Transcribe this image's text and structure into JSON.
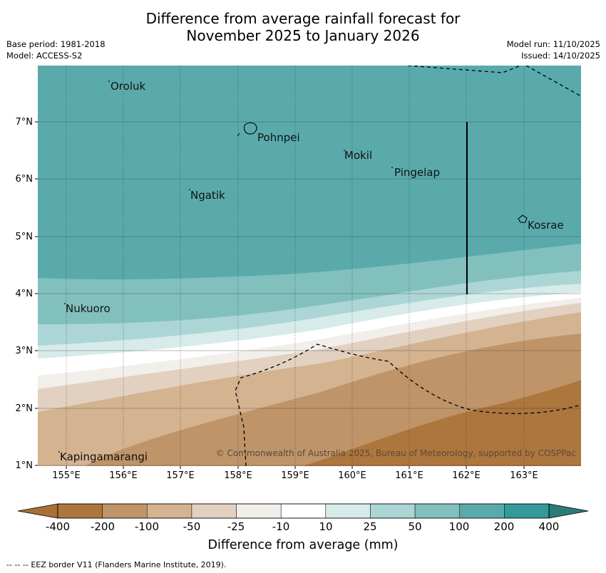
{
  "title": {
    "line1": "Difference from average rainfall forecast for",
    "line2": "November 2025 to January 2026"
  },
  "meta_left": {
    "base_period": "Base period: 1981-2018",
    "model": "Model: ACCESS-S2"
  },
  "meta_right": {
    "model_run": "Model run: 11/10/2025",
    "issued": "Issued: 14/10/2025"
  },
  "map": {
    "lat_labels": [
      "7°N",
      "6°N",
      "5°N",
      "4°N",
      "3°N",
      "2°N",
      "1°N"
    ],
    "lon_labels": [
      "155°E",
      "156°E",
      "157°E",
      "158°E",
      "159°E",
      "160°E",
      "161°E",
      "162°E",
      "163°E"
    ],
    "places": [
      "Oroluk",
      "Pohnpei",
      "Mokil",
      "Pingelap",
      "Ngatik",
      "Kosrae",
      "Nukuoro",
      "Kapingamarangi"
    ],
    "copyright": "© Commonwealth of Australia 2025, Bureau of Meteorology, supported by COSPPac"
  },
  "colorbar": {
    "ticks": [
      "-400",
      "-200",
      "-100",
      "-50",
      "-25",
      "-10",
      "10",
      "25",
      "50",
      "100",
      "200",
      "400"
    ],
    "colors": [
      "#a96f36",
      "#ad763d",
      "#bf9469",
      "#d4b391",
      "#e2d1c0",
      "#f2eeea",
      "#ffffff",
      "#d6ebea",
      "#acd6d5",
      "#82c0be",
      "#5aaaac",
      "#33999a",
      "#2c7b7b"
    ],
    "title": "Difference from average (mm)"
  },
  "legend": {
    "eez_symbol": "-- -- --",
    "eez_text": "EEZ border V11 (Flanders Marine Institute, 2019)."
  }
}
